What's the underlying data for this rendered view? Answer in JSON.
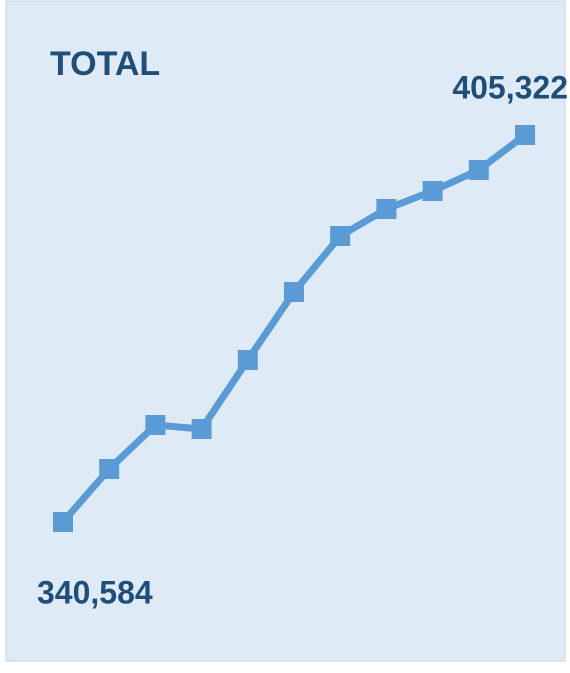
{
  "chart_data": {
    "type": "line",
    "title": "TOTAL",
    "values": [
      340584,
      349450,
      356810,
      356141,
      367683,
      379058,
      388426,
      392943,
      395954,
      399467,
      405322
    ],
    "value_labels": [
      "340,584",
      null,
      null,
      null,
      null,
      null,
      null,
      null,
      null,
      null,
      "405,322"
    ],
    "color": "#5b9bd5"
  }
}
